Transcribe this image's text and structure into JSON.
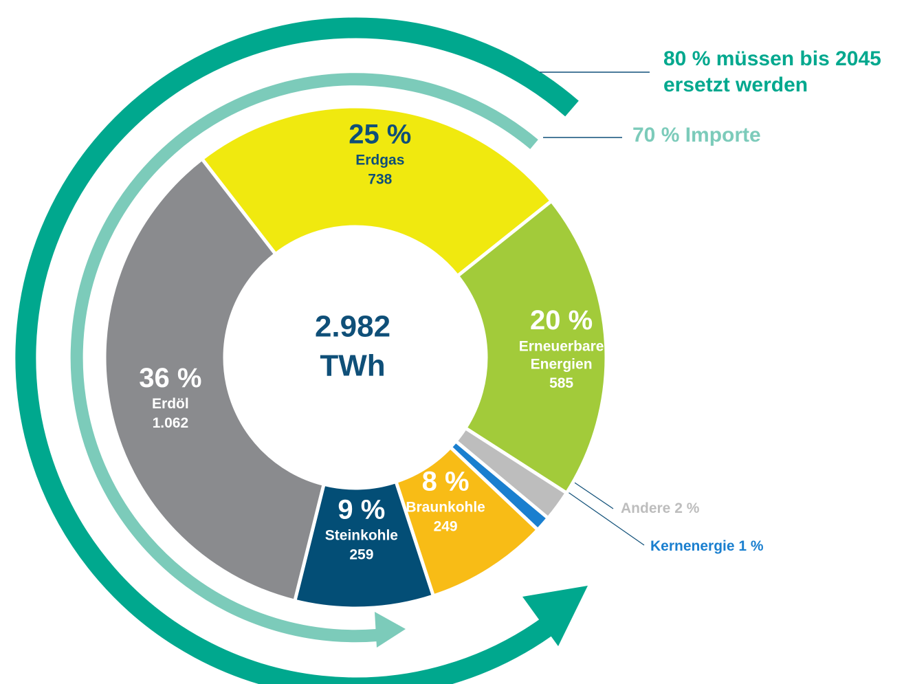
{
  "chart_data": {
    "type": "donut",
    "categories": [
      "Erdgas",
      "Erneuerbare Energien",
      "Andere",
      "Kernenergie",
      "Braunkohle",
      "Steinkohle",
      "Erdöl"
    ],
    "values": [
      25,
      20,
      2,
      1,
      8,
      9,
      36
    ],
    "value_labels": [
      "25 %",
      "20 %",
      "2 %",
      "1 %",
      "8 %",
      "9 %",
      "36 %"
    ],
    "amounts": [
      738,
      585,
      null,
      null,
      249,
      259,
      1062
    ],
    "amount_labels": [
      "738",
      "585",
      null,
      null,
      "249",
      "259",
      "1.062"
    ],
    "colors": [
      "#f0e90f",
      "#a2cb3a",
      "#bdbdbd",
      "#1a7fcf",
      "#f8bc16",
      "#034e76",
      "#8a8b8e"
    ],
    "total": {
      "value": 2982,
      "label": "2.982"
    },
    "unit": "TWh",
    "annotations": [
      {
        "lines": [
          "80 % müssen bis 2045",
          "ersetzt werden"
        ],
        "color": "#00a88e"
      },
      {
        "lines": [
          "70 % Importe"
        ],
        "color": "#7ccbba"
      }
    ]
  }
}
